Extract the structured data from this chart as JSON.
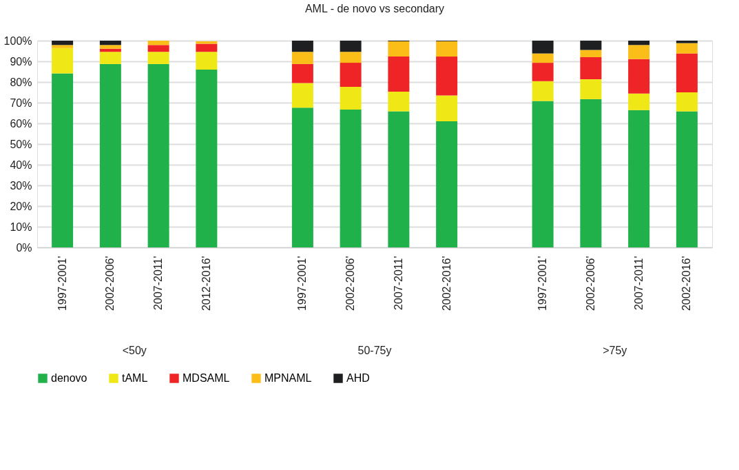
{
  "chart_data": {
    "type": "bar",
    "title": "AML - de novo vs secondary",
    "stacked": true,
    "categories": [
      "1997-2001'",
      "2002-2006'",
      "2007-2011'",
      "2012-2016'",
      null,
      "1997-2001'",
      "2002-2006'",
      "2007-2011'",
      "2002-2016'",
      null,
      "1997-2001'",
      "2002-2006'",
      "2007-2011'",
      "2002-2016'"
    ],
    "series": [
      {
        "name": "denovo",
        "color": "#21b14b",
        "values": [
          84.2,
          88.7,
          88.7,
          86.0,
          null,
          67.6,
          66.7,
          65.8,
          61.0,
          null,
          70.8,
          71.7,
          66.4,
          65.8
        ]
      },
      {
        "name": "tAML",
        "color": "#f0e816",
        "values": [
          12.2,
          5.9,
          5.9,
          8.6,
          null,
          11.9,
          11.0,
          9.5,
          12.5,
          null,
          9.6,
          9.6,
          8.0,
          9.2
        ]
      },
      {
        "name": "MDSAML",
        "color": "#ee2426",
        "values": [
          0,
          1.5,
          3.3,
          3.9,
          null,
          9.2,
          11.6,
          17.0,
          18.8,
          null,
          8.9,
          10.7,
          16.7,
          18.8
        ]
      },
      {
        "name": "MPNAML",
        "color": "#fbbd17",
        "values": [
          1.5,
          1.8,
          2.1,
          1.2,
          null,
          5.9,
          5.3,
          7.4,
          7.4,
          null,
          4.5,
          3.5,
          6.8,
          5.0
        ]
      },
      {
        "name": "AHD",
        "color": "#1e1f21",
        "values": [
          2.1,
          2.1,
          0,
          0,
          null,
          5.4,
          5.4,
          0.3,
          0.3,
          null,
          6.2,
          4.5,
          2.1,
          1.2
        ]
      }
    ],
    "ylim": [
      0,
      100
    ],
    "yticks": [
      {
        "value": 0,
        "label": "0%"
      },
      {
        "value": 10,
        "label": "10%"
      },
      {
        "value": 20,
        "label": "20%"
      },
      {
        "value": 30,
        "label": "30%"
      },
      {
        "value": 40,
        "label": "40%"
      },
      {
        "value": 50,
        "label": "50%"
      },
      {
        "value": 60,
        "label": "60%"
      },
      {
        "value": 70,
        "label": "70%"
      },
      {
        "value": 80,
        "label": "80%"
      },
      {
        "value": 90,
        "label": "90%"
      },
      {
        "value": 100,
        "label": "100%"
      }
    ],
    "grid": "y",
    "legend": "bottom",
    "annotations": [
      "<50y",
      "50-75y",
      ">75y"
    ]
  }
}
